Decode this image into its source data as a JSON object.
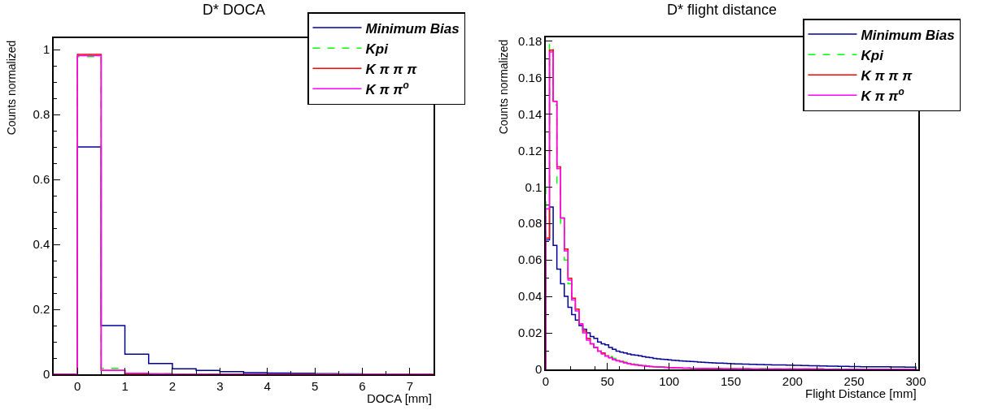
{
  "chart_data": [
    {
      "type": "histogram",
      "title": "D* DOCA",
      "xlabel": "DOCA [mm]",
      "ylabel": "Counts normalized",
      "legend": "top right",
      "bins": [
        -0.5,
        0,
        0.5,
        1,
        1.5,
        2,
        2.5,
        3,
        3.5,
        4,
        4.5,
        5,
        5.5,
        6,
        6.5,
        7,
        7.5
      ],
      "series": [
        {
          "name": "Minimum Bias",
          "color": "#000099",
          "line_style": "solid",
          "values": [
            0,
            0.7,
            0.15,
            0.062,
            0.033,
            0.017,
            0.012,
            0.008,
            0.005,
            0.004,
            0.003,
            0.002,
            0.001,
            0,
            0,
            0
          ]
        },
        {
          "name": "Kpi",
          "color": "#00ff00",
          "line_style": "dashed",
          "values": [
            0,
            0.978,
            0.018,
            0.002,
            0.001,
            0,
            0,
            0,
            0,
            0,
            0,
            0,
            0,
            0,
            0,
            0
          ]
        },
        {
          "name": "K π π π",
          "color": "#ff0000",
          "line_style": "solid",
          "values": [
            0,
            0.985,
            0.012,
            0.002,
            0.001,
            0,
            0,
            0,
            0,
            0,
            0,
            0,
            0,
            0,
            0,
            0
          ]
        },
        {
          "name": "K π π$^{o}$",
          "color": "#ff00ff",
          "line_style": "solid",
          "values": [
            0,
            0.981,
            0.012,
            0.003,
            0.001,
            0,
            0,
            0,
            0,
            0,
            0,
            0,
            0,
            0,
            0,
            0
          ]
        }
      ],
      "xlim": [
        -0.5,
        7.5
      ],
      "xticks": [
        0,
        1,
        2,
        3,
        4,
        5,
        6,
        7
      ],
      "ylim": [
        0,
        1.035
      ],
      "yticks": [
        0,
        0.2,
        0.4,
        0.6,
        0.8,
        1
      ]
    },
    {
      "type": "histogram",
      "title": "D* flight distance",
      "xlabel": "Flight Distance [mm]",
      "ylabel": "Counts normalized",
      "legend": "top right",
      "bins": [
        0,
        3,
        6,
        9,
        12,
        15,
        18,
        21,
        24,
        27,
        30,
        33,
        36,
        39,
        42,
        45,
        48,
        51,
        54,
        57,
        60,
        63,
        66,
        69,
        72,
        75,
        78,
        81,
        84,
        87,
        90,
        93,
        96,
        99,
        102,
        105,
        108,
        111,
        114,
        117,
        120,
        123,
        126,
        129,
        132,
        135,
        138,
        141,
        144,
        147,
        150,
        153,
        156,
        159,
        162,
        165,
        168,
        171,
        174,
        177,
        180,
        183,
        186,
        189,
        192,
        195,
        198,
        201,
        204,
        207,
        210,
        213,
        216,
        219,
        222,
        225,
        228,
        231,
        234,
        237,
        240,
        243,
        246,
        249,
        252,
        255,
        258,
        261,
        264,
        267,
        270,
        273,
        276,
        279,
        282,
        285,
        288,
        291,
        294,
        297,
        300
      ],
      "series": [
        {
          "name": "Minimum Bias",
          "color": "#000099",
          "line_style": "solid",
          "values": [
            0.071,
            0.089,
            0.068,
            0.055,
            0.047,
            0.04,
            0.034,
            0.03,
            0.027,
            0.024,
            0.022,
            0.02,
            0.018,
            0.017,
            0.015,
            0.014,
            0.0135,
            0.012,
            0.011,
            0.01,
            0.0095,
            0.009,
            0.0085,
            0.008,
            0.0078,
            0.0075,
            0.007,
            0.0067,
            0.0064,
            0.006,
            0.0058,
            0.0056,
            0.0054,
            0.0052,
            0.005,
            0.0049,
            0.0047,
            0.0046,
            0.0044,
            0.0043,
            0.0042,
            0.004,
            0.0039,
            0.0038,
            0.0037,
            0.0036,
            0.0035,
            0.0034,
            0.0033,
            0.0032,
            0.0031,
            0.003,
            0.003,
            0.0029,
            0.0029,
            0.0028,
            0.0028,
            0.0027,
            0.0027,
            0.0026,
            0.0026,
            0.0025,
            0.0025,
            0.0024,
            0.0024,
            0.0023,
            0.0023,
            0.0022,
            0.0022,
            0.0021,
            0.0021,
            0.002,
            0.002,
            0.002,
            0.0019,
            0.0019,
            0.0018,
            0.0018,
            0.0018,
            0.0017,
            0.0017,
            0.0017,
            0.0016,
            0.0016,
            0.0016,
            0.0015,
            0.0015,
            0.0015,
            0.0015,
            0.0014,
            0.0014,
            0.0014,
            0.0014,
            0.0013,
            0.0013,
            0.0013,
            0.0013,
            0.0012,
            0.0012,
            0.0012
          ]
        },
        {
          "name": "Kpi",
          "color": "#00ff00",
          "line_style": "dashed",
          "values": [
            0.1,
            0.178,
            0.145,
            0.1,
            0.078,
            0.06,
            0.047,
            0.037,
            0.03,
            0.025,
            0.02,
            0.017,
            0.014,
            0.012,
            0.01,
            0.009,
            0.008,
            0.007,
            0.006,
            0.0052,
            0.0045,
            0.004,
            0.0035,
            0.003,
            0.0027,
            0.0024,
            0.0021,
            0.0019,
            0.0017,
            0.0015,
            0.0014,
            0.0013,
            0.0012,
            0.0011,
            0.001,
            0.0009,
            0.0009,
            0.0008,
            0.0008,
            0.0007,
            0.0007,
            0.0006,
            0.0006,
            0.0006,
            0.0005,
            0.0005,
            0.0005,
            0.0004,
            0.0004,
            0.0004,
            0.0004,
            0.0003,
            0.0003,
            0.0003,
            0.0003,
            0.0003,
            0.0003,
            0.0003,
            0.0003,
            0.0003,
            0.0002,
            0.0002,
            0.0002,
            0.0002,
            0.0002,
            0.0002,
            0.0002,
            0.0002,
            0.0002,
            0.0002,
            0.0002,
            0.0002,
            0.0002,
            0.0002,
            0.0002,
            0.0002,
            0.0002,
            0.0002,
            0.0002,
            0.0002,
            0.0001,
            0.0001,
            0.0001,
            0.0001,
            0.0001,
            0.0001,
            0.0001,
            0.0001,
            0.0001,
            0.0001,
            0.0001,
            0.0001,
            0.0001,
            0.0001,
            0.0001,
            0.0001,
            0.0001,
            0.0001,
            0.0001,
            0.0001
          ]
        },
        {
          "name": "K π π π",
          "color": "#ff0000",
          "line_style": "solid",
          "values": [
            0.072,
            0.175,
            0.147,
            0.111,
            0.083,
            0.066,
            0.05,
            0.039,
            0.033,
            0.025,
            0.021,
            0.017,
            0.014,
            0.012,
            0.01,
            0.009,
            0.0075,
            0.0065,
            0.0055,
            0.0048,
            0.0042,
            0.0037,
            0.0032,
            0.0028,
            0.0025,
            0.0022,
            0.002,
            0.0018,
            0.0016,
            0.0014,
            0.0013,
            0.0012,
            0.0011,
            0.001,
            0.0009,
            0.0008,
            0.0008,
            0.0007,
            0.0007,
            0.0006,
            0.0006,
            0.0005,
            0.0005,
            0.0005,
            0.0004,
            0.0004,
            0.0004,
            0.0003,
            0.0003,
            0.0003,
            0.0003,
            0.0003,
            0.0003,
            0.0003,
            0.0003,
            0.0002,
            0.0002,
            0.0002,
            0.0002,
            0.0002,
            0.0002,
            0.0002,
            0.0002,
            0.0002,
            0.0002,
            0.0002,
            0.0002,
            0.0002,
            0.0002,
            0.0002,
            0.0002,
            0.0002,
            0.0002,
            0.0002,
            0.0002,
            0.0001,
            0.0001,
            0.0001,
            0.0001,
            0.0001,
            0.0001,
            0.0001,
            0.0001,
            0.0001,
            0.0001,
            0.0001,
            0.0001,
            0.0001,
            0.0001,
            0.0001,
            0.0001,
            0.0001,
            0.0001,
            0.0001,
            0.0001,
            0.0001,
            0.0001,
            0.0001,
            0.0001,
            0.0001
          ]
        },
        {
          "name": "K π π$^{o}$",
          "color": "#ff00ff",
          "line_style": "solid",
          "values": [
            0.088,
            0.174,
            0.147,
            0.11,
            0.083,
            0.065,
            0.049,
            0.038,
            0.032,
            0.025,
            0.02,
            0.016,
            0.014,
            0.012,
            0.01,
            0.0085,
            0.0072,
            0.0063,
            0.0054,
            0.0047,
            0.0042,
            0.0037,
            0.0032,
            0.0028,
            0.0025,
            0.0022,
            0.002,
            0.0018,
            0.0016,
            0.0014,
            0.0013,
            0.0012,
            0.0011,
            0.001,
            0.0009,
            0.0008,
            0.0008,
            0.0007,
            0.0007,
            0.0006,
            0.0006,
            0.0005,
            0.0005,
            0.0005,
            0.0004,
            0.0004,
            0.0004,
            0.0003,
            0.0003,
            0.0003,
            0.0003,
            0.0003,
            0.0003,
            0.0003,
            0.0003,
            0.0002,
            0.0002,
            0.0002,
            0.0002,
            0.0002,
            0.0002,
            0.0002,
            0.0002,
            0.0002,
            0.0002,
            0.0002,
            0.0002,
            0.0002,
            0.0002,
            0.0002,
            0.0002,
            0.0002,
            0.0002,
            0.0002,
            0.0002,
            0.0001,
            0.0001,
            0.0001,
            0.0001,
            0.0001,
            0.0001,
            0.0001,
            0.0001,
            0.0001,
            0.0001,
            0.0001,
            0.0001,
            0.0001,
            0.0001,
            0.0001,
            0.0001,
            0.0001,
            0.0001,
            0.0001,
            0.0001,
            0.0001,
            0.0001,
            0.0001,
            0.0001,
            0.0001
          ]
        }
      ],
      "xlim": [
        0,
        302
      ],
      "xticks": [
        0,
        50,
        100,
        150,
        200,
        250,
        300
      ],
      "ylim": [
        0,
        0.182
      ],
      "yticks": [
        0,
        0.02,
        0.04,
        0.06,
        0.08,
        0.1,
        0.12,
        0.14,
        0.16,
        0.18
      ]
    }
  ]
}
